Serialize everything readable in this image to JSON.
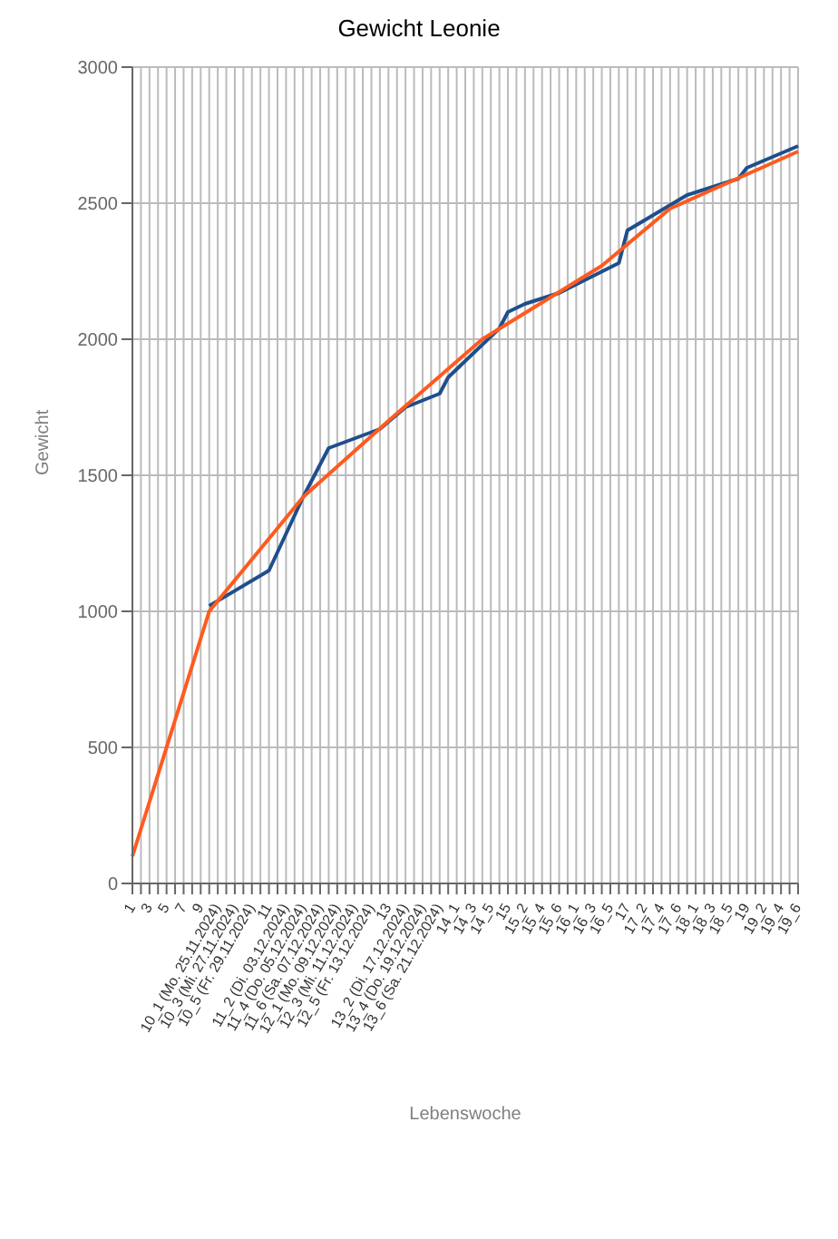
{
  "chart_data": {
    "type": "line",
    "title": "Gewicht Leonie",
    "xlabel": "Lebenswoche",
    "ylabel": "Gewicht",
    "categories": [
      "1",
      null,
      "3",
      null,
      "5",
      null,
      "7",
      null,
      "9",
      null,
      "10_1 (Mo. 25.11.2024)",
      null,
      "10_3 (Mi. 27.11.2024)",
      null,
      "10_5 (Fr. 29.11.2024)",
      null,
      "11",
      null,
      "11_2 (Di. 03.12.2024)",
      null,
      "11_4 (Do. 05.12.2024)",
      null,
      "11_6 (Sa. 07.12.2024)",
      null,
      "12_1 (Mo. 09.12.2024)",
      null,
      "12_3 (Mi. 11.12.2024)",
      null,
      "12_5 (Fr. 13.12.2024)",
      null,
      "13",
      null,
      "13_2 (Di. 17.12.2024)",
      null,
      "13_4 (Do. 19.12.2024)",
      null,
      "13_6 (Sa. 21.12.2024)",
      null,
      "14_1",
      null,
      "14_3",
      null,
      "14_5",
      null,
      "15",
      null,
      "15_2",
      null,
      "15_4",
      null,
      "15_6",
      null,
      "16_1",
      null,
      "16_3",
      null,
      "16_5",
      null,
      "17",
      null,
      "17_2",
      null,
      "17_4",
      null,
      "17_6",
      null,
      "18_1",
      null,
      "18_3",
      null,
      "18_5",
      null,
      "19",
      null,
      "19_2",
      null,
      "19_4",
      null,
      "19_6"
    ],
    "series": [
      {
        "color": "#1f4e8c",
        "values": [
          null,
          null,
          null,
          null,
          null,
          null,
          null,
          null,
          null,
          1020,
          null,
          null,
          null,
          null,
          null,
          null,
          1150,
          null,
          null,
          null,
          1420,
          null,
          null,
          1600,
          null,
          null,
          null,
          null,
          null,
          1670,
          null,
          null,
          1750,
          null,
          null,
          null,
          1800,
          1860,
          null,
          null,
          null,
          1980,
          null,
          2040,
          2100,
          null,
          2130,
          null,
          null,
          null,
          2170,
          null,
          null,
          null,
          null,
          null,
          null,
          2280,
          2400,
          null,
          null,
          null,
          null,
          null,
          null,
          2530,
          null,
          null,
          null,
          null,
          null,
          2590,
          2630,
          null,
          null,
          null,
          null,
          null,
          2710
        ]
      },
      {
        "color": "#ff5a1f",
        "values": [
          100,
          null,
          null,
          null,
          null,
          null,
          null,
          null,
          900,
          1000,
          null,
          null,
          null,
          null,
          null,
          null,
          null,
          null,
          null,
          null,
          1420,
          null,
          null,
          null,
          null,
          null,
          null,
          null,
          null,
          null,
          1700,
          null,
          null,
          null,
          null,
          null,
          null,
          null,
          null,
          null,
          null,
          2000,
          null,
          null,
          null,
          null,
          null,
          null,
          null,
          null,
          null,
          null,
          null,
          null,
          null,
          2270,
          null,
          null,
          null,
          null,
          null,
          null,
          null,
          2480,
          null,
          null,
          null,
          null,
          null,
          null,
          null,
          null,
          null,
          null,
          null,
          null,
          null,
          null,
          2690
        ]
      }
    ],
    "ylim": [
      0,
      3000
    ],
    "yticks": [
      0,
      500,
      1000,
      1500,
      2000,
      2500,
      3000
    ],
    "grid": true,
    "marker": "none"
  }
}
